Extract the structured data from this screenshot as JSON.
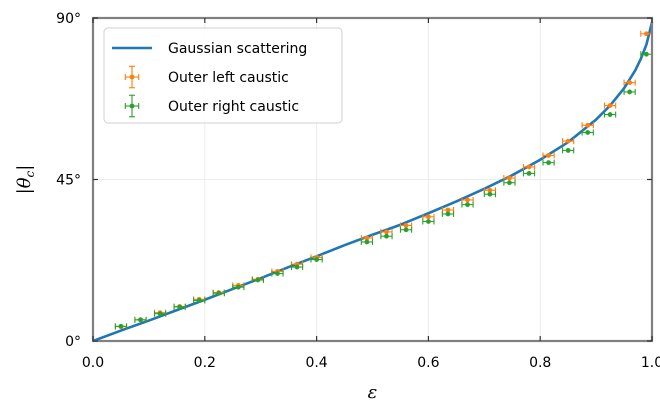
{
  "chart_data": {
    "type": "line",
    "xlabel": "ε",
    "ylabel": "|θ",
    "ylabel_sub": "c",
    "ylabel_close": "|",
    "xlim": [
      0.0,
      1.0
    ],
    "ylim": [
      0,
      90
    ],
    "x_ticks": [
      {
        "value": 0.0,
        "label": "0.0"
      },
      {
        "value": 0.2,
        "label": "0.2"
      },
      {
        "value": 0.4,
        "label": "0.4"
      },
      {
        "value": 0.6,
        "label": "0.6"
      },
      {
        "value": 0.8,
        "label": "0.8"
      },
      {
        "value": 1.0,
        "label": "1.0"
      }
    ],
    "y_ticks": [
      {
        "value": 0,
        "label": "0°"
      },
      {
        "value": 45,
        "label": "45°"
      },
      {
        "value": 90,
        "label": "90°"
      }
    ],
    "grid": true,
    "legend_position": "top-left",
    "series": [
      {
        "name": "Gaussian scattering",
        "kind": "line",
        "color": "#1f77b4",
        "x": [
          0,
          0.05,
          0.1,
          0.15,
          0.2,
          0.25,
          0.3,
          0.35,
          0.4,
          0.45,
          0.5,
          0.55,
          0.6,
          0.65,
          0.7,
          0.75,
          0.8,
          0.85,
          0.9,
          0.925,
          0.95,
          0.97,
          0.98,
          0.99,
          1.0
        ],
        "y": [
          0,
          2.9,
          5.7,
          8.6,
          11.5,
          14.5,
          17.5,
          20.6,
          23.6,
          26.7,
          29.6,
          32.4,
          35.6,
          38.9,
          42.4,
          46.2,
          50.5,
          55.4,
          61.7,
          65.6,
          70.4,
          75.4,
          78.6,
          82.6,
          88.8
        ]
      },
      {
        "name": "Outer left caustic",
        "kind": "errorbar",
        "color": "#ff7f0e",
        "x": [
          0.05,
          0.085,
          0.12,
          0.155,
          0.19,
          0.225,
          0.26,
          0.295,
          0.33,
          0.365,
          0.4,
          0.49,
          0.525,
          0.56,
          0.6,
          0.635,
          0.67,
          0.71,
          0.745,
          0.78,
          0.815,
          0.85,
          0.885,
          0.925,
          0.96,
          0.99
        ],
        "y": [
          4.0,
          5.9,
          7.9,
          9.6,
          11.6,
          13.5,
          15.5,
          17.2,
          19.4,
          21.4,
          23.3,
          28.7,
          30.4,
          32.2,
          34.6,
          36.5,
          39.3,
          42.0,
          45.4,
          48.5,
          51.7,
          55.7,
          60.1,
          65.6,
          72.0,
          85.6
        ],
        "xerr": 0.01,
        "yerr": 0.6
      },
      {
        "name": "Outer right caustic",
        "kind": "errorbar",
        "color": "#2ca02c",
        "x": [
          0.05,
          0.085,
          0.12,
          0.155,
          0.19,
          0.225,
          0.26,
          0.295,
          0.33,
          0.365,
          0.4,
          0.49,
          0.525,
          0.56,
          0.6,
          0.635,
          0.67,
          0.71,
          0.745,
          0.78,
          0.815,
          0.85,
          0.885,
          0.925,
          0.96,
          0.99
        ],
        "y": [
          4.1,
          5.9,
          7.6,
          9.5,
          11.3,
          13.3,
          15.0,
          17.0,
          18.8,
          20.6,
          22.7,
          27.6,
          29.2,
          31.0,
          33.3,
          35.4,
          38.0,
          40.9,
          44.1,
          46.7,
          49.7,
          53.1,
          58.1,
          63.1,
          69.4,
          79.9
        ],
        "xerr": 0.01,
        "yerr": 0.6
      }
    ]
  },
  "legend_error_bar_demo": {
    "Outer left caustic": {
      "xerr": 0.012,
      "yerr": 3.0
    }
  }
}
